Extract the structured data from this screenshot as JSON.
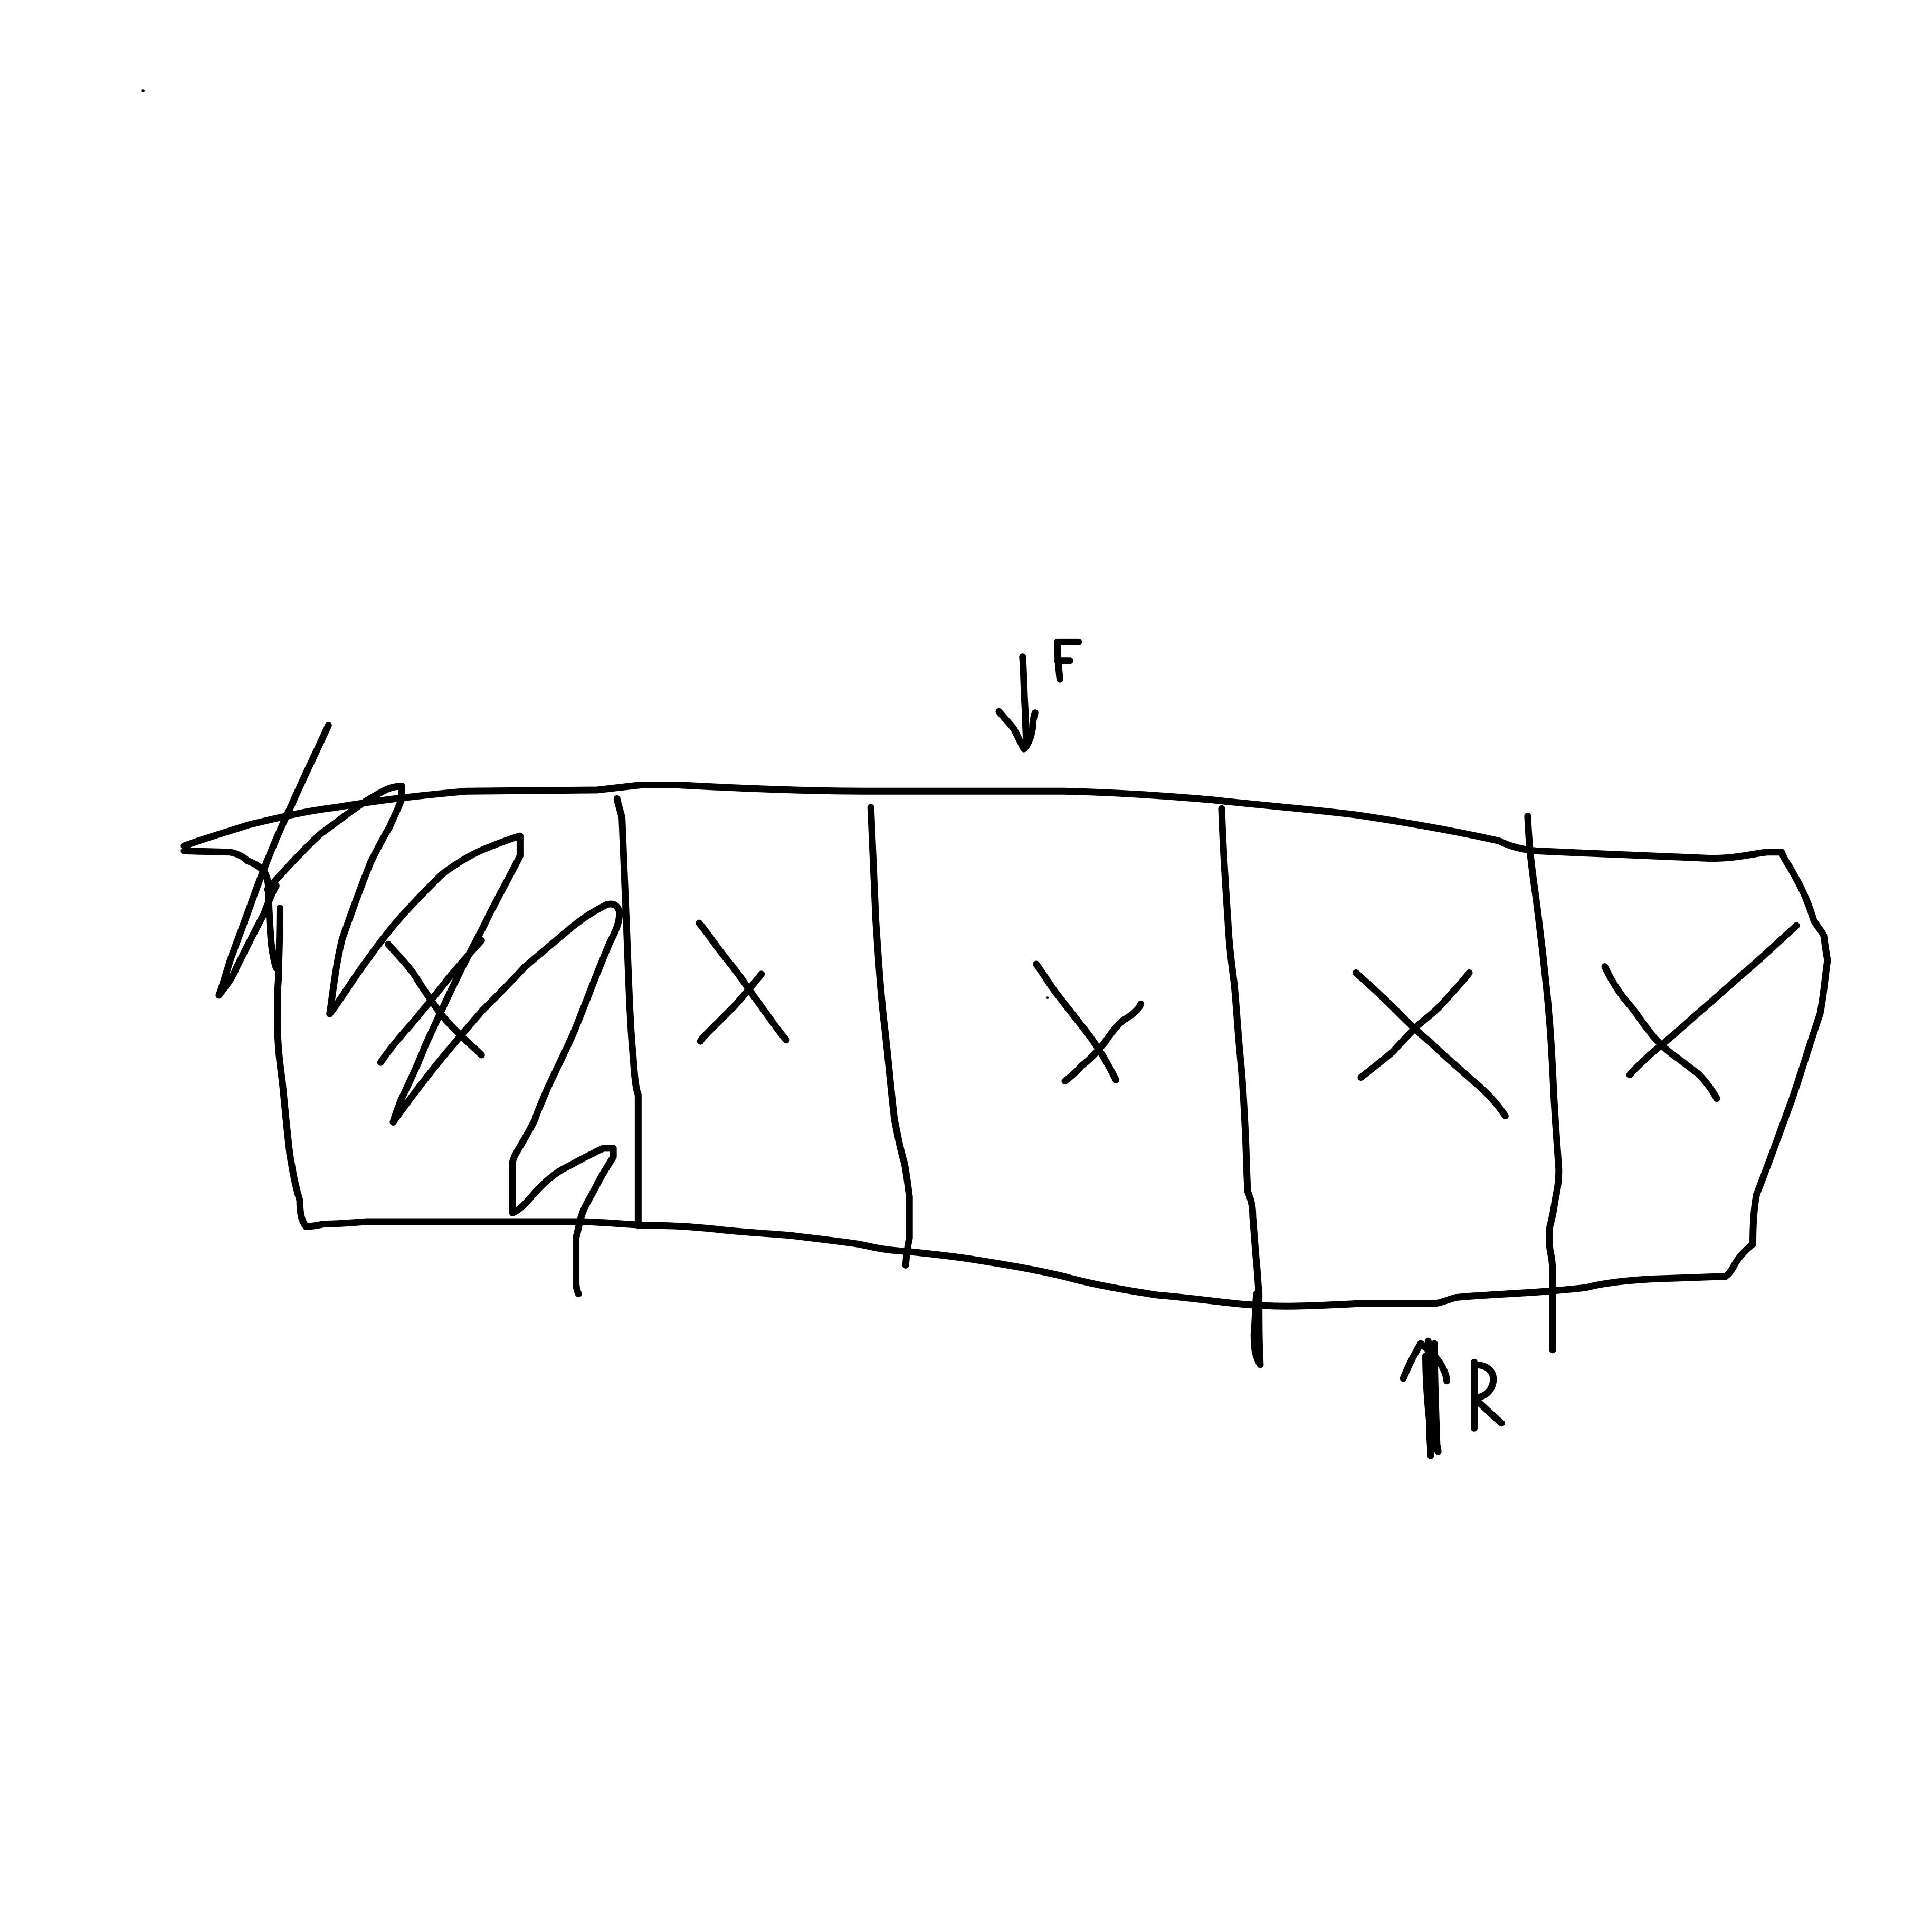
{
  "diagram": {
    "background_color": "#ffffff",
    "ink_color": "#000000",
    "beam": {
      "segments": 6,
      "first_segment": "scribbled",
      "other_segments_marked": "X"
    },
    "forces": [
      {
        "label": "F",
        "direction": "down"
      },
      {
        "label": "R",
        "direction": "up"
      }
    ]
  }
}
